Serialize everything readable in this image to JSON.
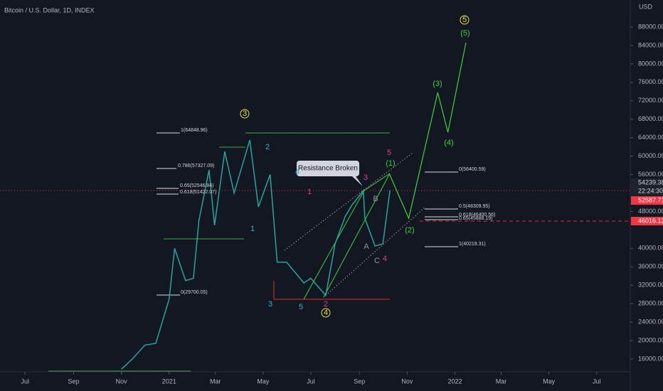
{
  "chart_data": {
    "type": "line",
    "title": "Bitcoin / U.S. Dollar, 1D, INDEX",
    "y_unit": "USD",
    "x": [
      123,
      137,
      153,
      167,
      184,
      191,
      205,
      215,
      222,
      235,
      242,
      255,
      267,
      287,
      298,
      313,
      322,
      334,
      356,
      365,
      384,
      396,
      409,
      418,
      432,
      434,
      447,
      457,
      466
    ],
    "series": [
      {
        "color": "#26a69a",
        "values": [
          13800,
          16000,
          19000,
          19400,
          29000,
          40000,
          33000,
          33500,
          46000,
          57000,
          45000,
          61000,
          52000,
          63500,
          49000,
          56000,
          37000,
          37000,
          32500,
          33500,
          29800,
          41000,
          47000,
          49500,
          52500,
          46500,
          40500,
          41000,
          52588
        ]
      },
      {
        "color": "#3cd23c",
        "x": [
          465,
          490,
          527,
          540,
          563
        ],
        "values": [
          56240,
          46520,
          73800,
          65170,
          84600
        ]
      }
    ],
    "xlim": [
      -32,
      772
    ],
    "ylim": [
      13380,
      93860
    ],
    "xticks": [
      {
        "value": 0,
        "label": "Jul"
      },
      {
        "value": 62,
        "label": "Sep"
      },
      {
        "value": 123,
        "label": "Nov"
      },
      {
        "value": 184,
        "label": "2021"
      },
      {
        "value": 243,
        "label": "Mar"
      },
      {
        "value": 304,
        "label": "May"
      },
      {
        "value": 365,
        "label": "Jul"
      },
      {
        "value": 427,
        "label": "Sep"
      },
      {
        "value": 488,
        "label": "Nov"
      },
      {
        "value": 549,
        "label": "2022"
      },
      {
        "value": 608,
        "label": "Mar"
      },
      {
        "value": 669,
        "label": "May"
      },
      {
        "value": 730,
        "label": "Jul"
      }
    ],
    "yticks": [
      {
        "value": 16000,
        "label": "16000.00"
      },
      {
        "value": 20000,
        "label": "20000.00"
      },
      {
        "value": 24000,
        "label": "24000.00"
      },
      {
        "value": 28000,
        "label": "28000.00"
      },
      {
        "value": 32000,
        "label": "32000.00"
      },
      {
        "value": 36000,
        "label": "36000.00"
      },
      {
        "value": 40000,
        "label": "40000.00"
      },
      {
        "value": 48000,
        "label": "48000.00"
      },
      {
        "value": 56000,
        "label": "56000.00"
      },
      {
        "value": 60000,
        "label": "60000.00"
      },
      {
        "value": 64000,
        "label": "64000.00"
      },
      {
        "value": 68000,
        "label": "68000.00"
      },
      {
        "value": 72000,
        "label": "72000.00"
      },
      {
        "value": 76000,
        "label": "76000.00"
      },
      {
        "value": 80000,
        "label": "80000.00"
      },
      {
        "value": 84000,
        "label": "84000.00"
      },
      {
        "value": 88000,
        "label": "88000.00"
      }
    ],
    "price_tags": [
      "54239.38",
      "22:24:30",
      "52587.71",
      "46016.12"
    ],
    "fib_labels": [
      "1(64848.96)",
      "0.786(57327.09)",
      "0.65(52546.84)",
      "0.618(51422.07)",
      "0(29700.05)",
      "0(56400.59)",
      "0.5(48309.95)",
      "0.618(46400.56)",
      "0.65(45888.19)",
      "1(40219.31)"
    ],
    "annotation": "Resistance Broken",
    "wave_labels": [
      "3",
      "2",
      "1",
      "3",
      "4",
      "5",
      "2",
      "4",
      "1",
      "3",
      "5",
      "(1)",
      "B",
      "A",
      "C",
      "4",
      "(2)",
      "(3)",
      "(4)",
      "(5)",
      "5"
    ]
  }
}
